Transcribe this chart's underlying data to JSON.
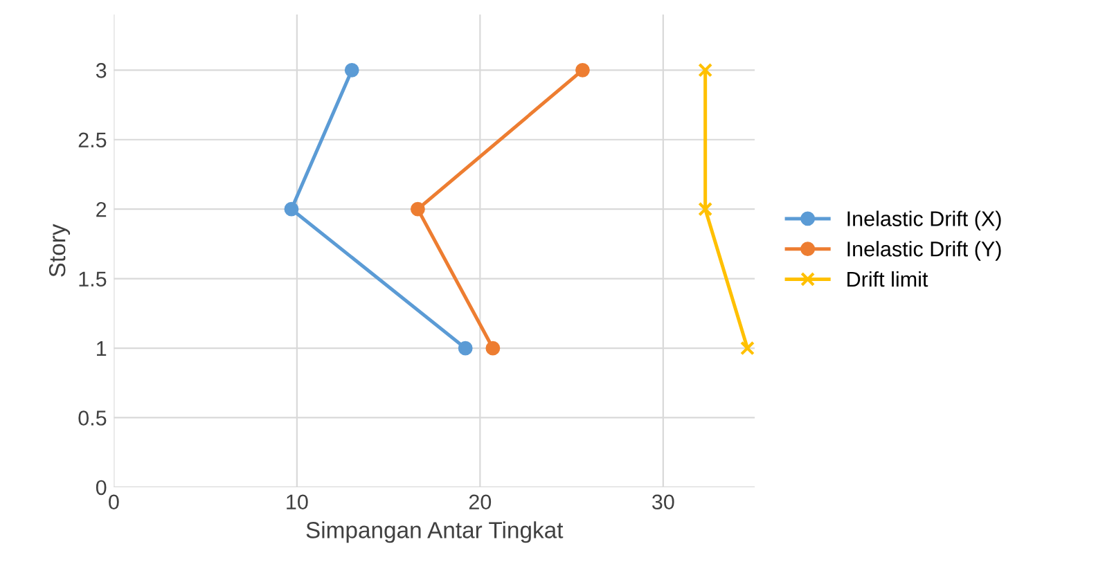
{
  "chart_data": {
    "type": "line",
    "xlabel": "Simpangan Antar Tingkat",
    "ylabel": "Story",
    "xlim": [
      0,
      35
    ],
    "xticks": [
      0,
      10,
      20,
      30
    ],
    "ylim": [
      0,
      3.4
    ],
    "yticks": [
      0,
      0.5,
      1,
      1.5,
      2,
      2.5,
      3
    ],
    "grid": true,
    "legend": "right",
    "series": [
      {
        "name": "Inelastic Drift (X)",
        "color": "#5b9bd5",
        "marker": "circle",
        "x": [
          19.2,
          9.7,
          13.0
        ],
        "values": [
          1,
          2,
          3
        ]
      },
      {
        "name": "Inelastic Drift (Y)",
        "color": "#ed7d31",
        "marker": "circle",
        "x": [
          20.7,
          16.6,
          25.6
        ],
        "values": [
          1,
          2,
          3
        ]
      },
      {
        "name": "Drift limit",
        "color": "#ffc000",
        "marker": "cross",
        "x": [
          34.6,
          32.3,
          32.3
        ],
        "values": [
          1,
          2,
          3
        ]
      }
    ]
  }
}
